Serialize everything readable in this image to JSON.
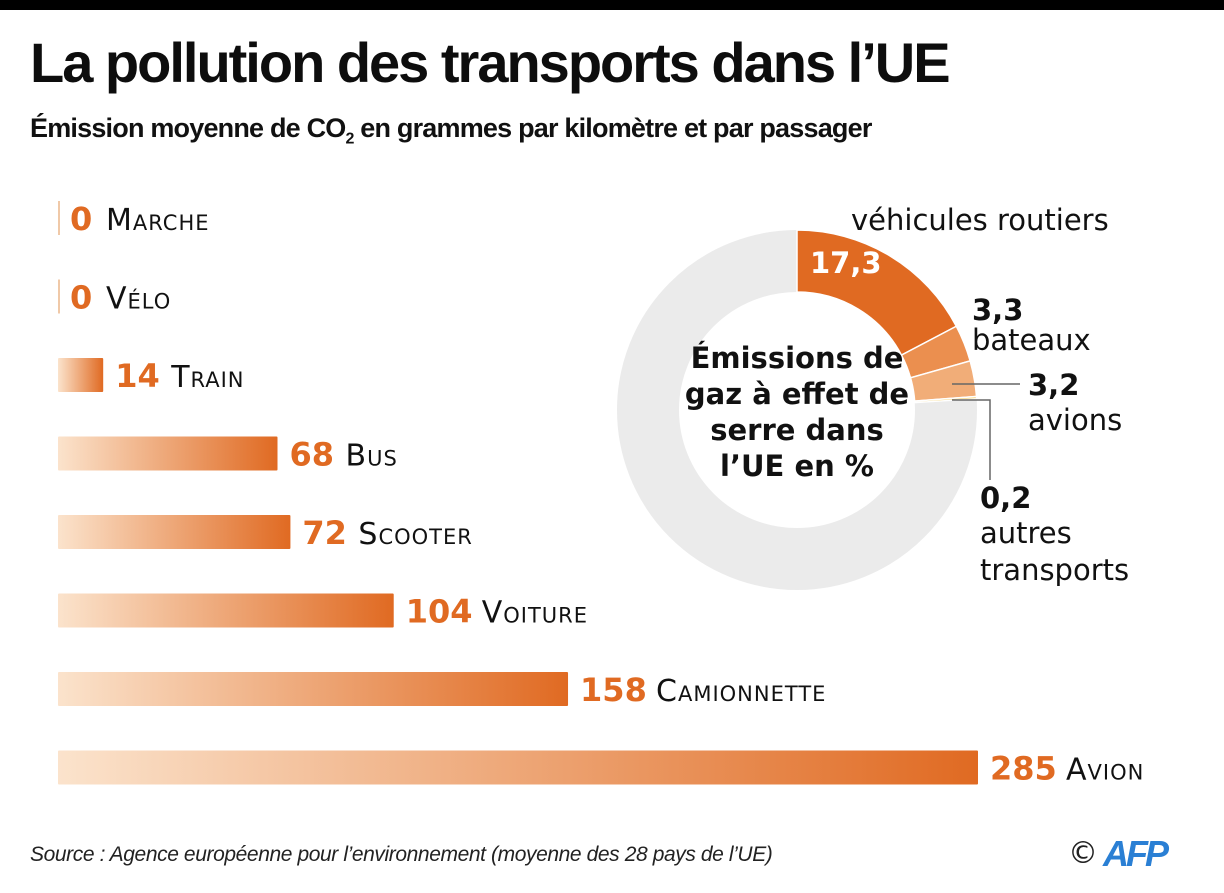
{
  "header": {
    "title": "La pollution des transports dans l’UE",
    "subtitle_pre": "Émission moyenne de CO",
    "subtitle_sub": "2",
    "subtitle_post": " en grammes par kilomètre et par passager"
  },
  "footer": {
    "source": "Source : Agence européenne pour l’environnement (moyenne des 28 pays de l’UE)",
    "copyright": "©",
    "logo": "AFP"
  },
  "colors": {
    "accent": "#e06a22",
    "bar_light": "#fbe3cc",
    "ring_bg": "#ebebeb",
    "seg_bateaux": "#eb8f4f",
    "seg_avions": "#f1ad78",
    "seg_autres": "#f7d26b",
    "logo": "#2a7fd4"
  },
  "chart_data": [
    {
      "type": "bar",
      "orientation": "horizontal",
      "title": "Émission moyenne de CO2 en grammes par kilomètre et par passager",
      "unit": "g CO2 / km / passager",
      "categories": [
        "Marche",
        "Vélo",
        "Train",
        "Bus",
        "Scooter",
        "Voiture",
        "Camionnette",
        "Avion"
      ],
      "values": [
        0,
        0,
        14,
        68,
        72,
        104,
        158,
        285
      ],
      "value_labels": [
        "0",
        "0",
        "14",
        "68",
        "72",
        "104",
        "158",
        "285"
      ],
      "xlim": [
        0,
        285
      ],
      "grid": false,
      "legend": "none"
    },
    {
      "type": "pie",
      "variant": "donut",
      "center_label": [
        "Émissions de",
        "gaz à effet de",
        "serre dans",
        "l’UE en %"
      ],
      "total_percent": 100,
      "slices": [
        {
          "label": "véhicules routiers",
          "value": 17.3,
          "value_label": "17,3"
        },
        {
          "label": "bateaux",
          "value": 3.3,
          "value_label": "3,3"
        },
        {
          "label": "avions",
          "value": 3.2,
          "value_label": "3,2"
        },
        {
          "label": "autres transports",
          "value": 0.2,
          "value_label": "0,2"
        }
      ],
      "remainder_label": ""
    }
  ]
}
